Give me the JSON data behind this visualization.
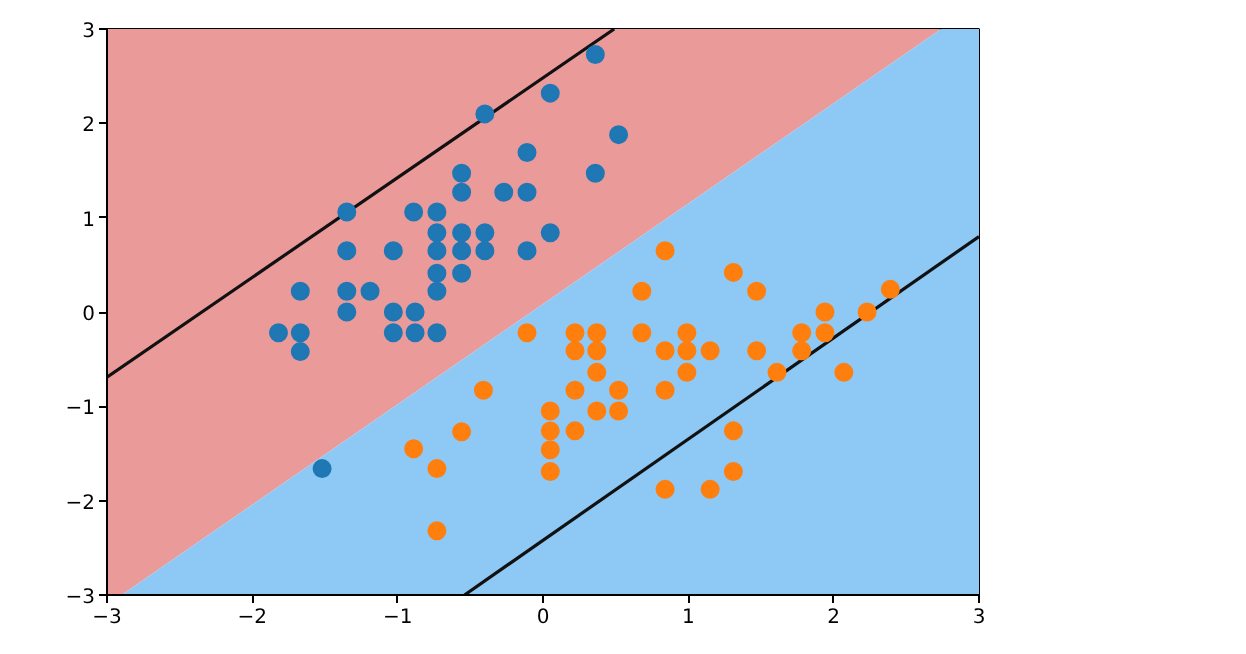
{
  "chart_data": {
    "type": "scatter",
    "xlim": [
      -3,
      3
    ],
    "ylim": [
      -3,
      3
    ],
    "xticks": [
      -3,
      -2,
      -1,
      0,
      1,
      2,
      3
    ],
    "yticks": [
      -3,
      -2,
      -1,
      0,
      1,
      2,
      3
    ],
    "grid": false,
    "series": [
      {
        "marker": "circle",
        "color": "#1f77b4",
        "x": [
          0.36,
          0.05,
          -0.4,
          0.52,
          -0.11,
          -0.56,
          -0.56,
          -0.27,
          -0.11,
          0.36,
          -1.35,
          -0.89,
          -0.73,
          -0.73,
          -0.56,
          -0.4,
          0.05,
          -1.35,
          -1.03,
          -0.73,
          -0.56,
          -0.4,
          -0.11,
          -0.73,
          -0.56,
          -1.67,
          -1.35,
          -1.19,
          -0.73,
          -1.35,
          -1.03,
          -0.88,
          -1.82,
          -1.67,
          -1.67,
          -1.03,
          -0.88,
          -0.73,
          -1.52
        ],
        "values": [
          2.73,
          2.32,
          2.1,
          1.88,
          1.69,
          1.47,
          1.27,
          1.27,
          1.27,
          1.47,
          1.06,
          1.06,
          1.06,
          0.84,
          0.84,
          0.84,
          0.84,
          0.65,
          0.65,
          0.65,
          0.65,
          0.65,
          0.65,
          0.41,
          0.41,
          0.22,
          0.22,
          0.22,
          0.22,
          0.0,
          0.0,
          0.0,
          -0.22,
          -0.22,
          -0.42,
          -0.22,
          -0.22,
          -0.22,
          -1.66
        ]
      },
      {
        "marker": "circle",
        "color": "#ff7f0e",
        "x": [
          0.84,
          1.31,
          1.47,
          0.68,
          1.94,
          2.23,
          2.39,
          -0.11,
          0.22,
          0.37,
          0.68,
          0.99,
          1.78,
          1.94,
          0.22,
          0.37,
          0.84,
          0.99,
          1.15,
          1.47,
          1.78,
          0.37,
          0.99,
          1.61,
          2.07,
          -0.41,
          0.22,
          0.52,
          0.84,
          0.05,
          0.37,
          0.52,
          0.05,
          0.22,
          1.31,
          0.05,
          0.05,
          1.31,
          0.84,
          1.15,
          -0.89,
          -0.73,
          -0.56,
          -0.73
        ],
        "values": [
          0.65,
          0.42,
          0.22,
          0.22,
          0.0,
          0.0,
          0.24,
          -0.22,
          -0.22,
          -0.22,
          -0.22,
          -0.22,
          -0.22,
          -0.22,
          -0.41,
          -0.41,
          -0.41,
          -0.41,
          -0.41,
          -0.41,
          -0.41,
          -0.64,
          -0.64,
          -0.64,
          -0.64,
          -0.83,
          -0.83,
          -0.83,
          -0.83,
          -1.05,
          -1.05,
          -1.05,
          -1.26,
          -1.26,
          -1.26,
          -1.46,
          -1.69,
          -1.69,
          -1.88,
          -1.88,
          -1.45,
          -1.66,
          -1.27,
          -2.32
        ]
      },
      {
        "type": "line",
        "color": "#111111",
        "line_style": "solid",
        "x": [
          -3,
          0.49
        ],
        "values": [
          -0.69,
          3
        ]
      },
      {
        "type": "line",
        "color": "#111111",
        "line_style": "solid",
        "x": [
          -0.54,
          3
        ],
        "values": [
          -3,
          0.8
        ]
      },
      {
        "type": "area",
        "color": "#8ec8f5",
        "x": [
          -3,
          -2.9,
          2.74,
          3,
          3
        ],
        "values": [
          -3,
          -3,
          3,
          3,
          -3
        ]
      },
      {
        "type": "area",
        "color": "#eb9a9a",
        "x": [
          -3,
          -3,
          -2.9,
          2.74
        ],
        "values": [
          3,
          -3,
          -3,
          3
        ]
      }
    ]
  }
}
